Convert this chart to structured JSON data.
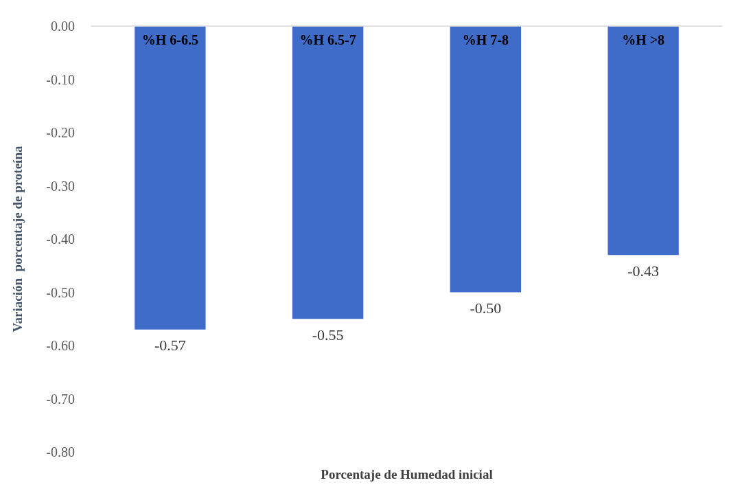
{
  "chart_data": {
    "type": "bar",
    "categories": [
      "%H 6-6.5",
      "%H 6.5-7",
      "%H 7-8",
      "%H >8"
    ],
    "values": [
      -0.57,
      -0.55,
      -0.5,
      -0.43
    ],
    "value_labels": [
      "-0.57",
      "-0.55",
      "-0.50",
      "-0.43"
    ],
    "color": "#3f6cc9",
    "xlabel": "Porcentaje de Humedad inicial",
    "ylabel": "Variación  porcentaje de proteína",
    "ylim": [
      -0.8,
      0
    ],
    "yticks": [
      {
        "value": 0,
        "label": "0.00"
      },
      {
        "value": -0.1,
        "label": "-0.10"
      },
      {
        "value": -0.2,
        "label": "-0.20"
      },
      {
        "value": -0.3,
        "label": "-0.30"
      },
      {
        "value": -0.4,
        "label": "-0.40"
      },
      {
        "value": -0.5,
        "label": "-0.50"
      },
      {
        "value": -0.6,
        "label": "-0.60"
      },
      {
        "value": -0.7,
        "label": "-0.70"
      },
      {
        "value": -0.8,
        "label": "-0.80"
      }
    ],
    "grid": false
  }
}
